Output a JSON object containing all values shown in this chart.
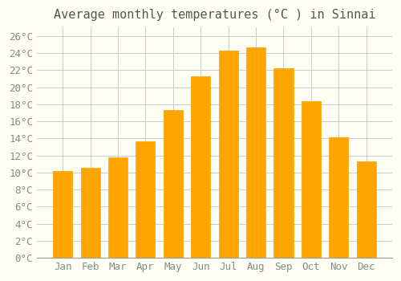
{
  "title": "Average monthly temperatures (°C ) in Sinnai",
  "months": [
    "Jan",
    "Feb",
    "Mar",
    "Apr",
    "May",
    "Jun",
    "Jul",
    "Aug",
    "Sep",
    "Oct",
    "Nov",
    "Dec"
  ],
  "values": [
    10.2,
    10.5,
    11.8,
    13.7,
    17.3,
    21.3,
    24.3,
    24.7,
    22.2,
    18.4,
    14.1,
    11.3
  ],
  "bar_color": "#FFA500",
  "bar_edge_color": "#FFC04D",
  "background_color": "#FFFEF5",
  "grid_color": "#CCCCCC",
  "ylim": [
    0,
    27
  ],
  "yticks": [
    0,
    2,
    4,
    6,
    8,
    10,
    12,
    14,
    16,
    18,
    20,
    22,
    24,
    26
  ],
  "title_fontsize": 11,
  "tick_fontsize": 9
}
